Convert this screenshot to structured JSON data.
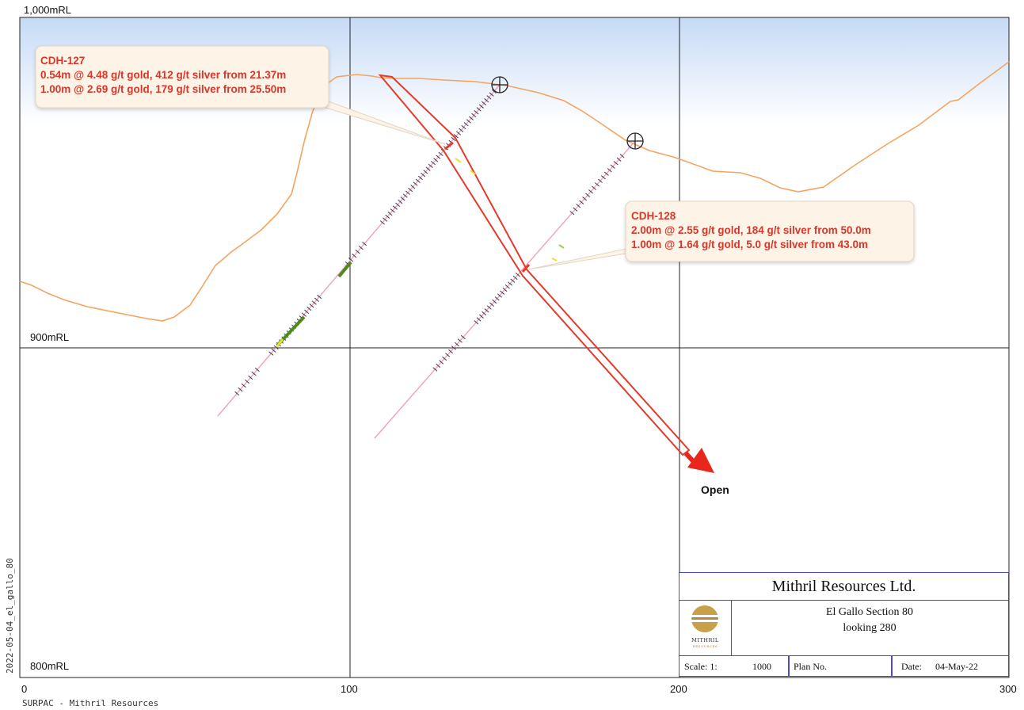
{
  "section": {
    "grid": {
      "rl_labels": [
        "1,000mRL",
        "900mRL",
        "800mRL"
      ],
      "easting_labels": [
        "0",
        "100",
        "200",
        "300"
      ]
    },
    "drillholes": [
      {
        "id": "CDH-127",
        "callout_title": "CDH-127",
        "callout_lines": [
          "0.54m @ 4.48 g/t gold, 412 g/t silver from 21.37m",
          "1.00m @ 2.69 g/t gold, 179 g/t silver from 25.50m"
        ]
      },
      {
        "id": "CDH-128",
        "callout_title": "CDH-128",
        "callout_lines": [
          "2.00m @ 2.55 g/t gold, 184 g/t silver from 50.0m",
          "1.00m @ 1.64 g/t gold, 5.0 g/t silver from 43.0m"
        ]
      }
    ],
    "arrow_label": "Open",
    "colors": {
      "topography": "#f4a460",
      "lode": "#e53a2a",
      "arrow": "#e8261a",
      "callout_text": "#d7382b",
      "callout_bg": "#fdf3e6",
      "drill_trace": "#f0a0b8",
      "title_border": "#4a4ad0",
      "sky_top": "#c9dcf7"
    }
  },
  "title_block": {
    "company": "Mithril Resources Ltd.",
    "subtitle_line1": "El Gallo Section 80",
    "subtitle_line2": "looking 280",
    "logo_text": "MITHRIL",
    "logo_subtext": "RESOURCES",
    "scale_label": "Scale: 1:",
    "scale_value": "1000",
    "plan_no_label": "Plan No.",
    "date_label": "Date:",
    "date_value": "04-May-22"
  },
  "margin_text": {
    "file_stamp": "2022-05-04_el_gallo_80",
    "footer": "SURPAC - Mithril Resources"
  }
}
